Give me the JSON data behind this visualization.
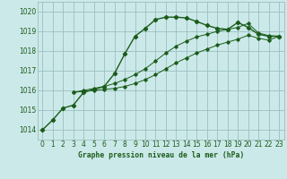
{
  "title": "Graphe pression niveau de la mer (hPa)",
  "bg_color": "#cce9e9",
  "grid_color": "#9bbfbf",
  "line_color": "#1a5c1a",
  "xlim": [
    -0.5,
    23.5
  ],
  "ylim": [
    1013.5,
    1020.5
  ],
  "xticks": [
    0,
    1,
    2,
    3,
    4,
    5,
    6,
    7,
    8,
    9,
    10,
    11,
    12,
    13,
    14,
    15,
    16,
    17,
    18,
    19,
    20,
    21,
    22,
    23
  ],
  "yticks": [
    1014,
    1015,
    1016,
    1017,
    1018,
    1019,
    1020
  ],
  "series1": {
    "x": [
      0,
      1,
      2,
      3,
      4,
      5,
      6,
      7,
      8,
      9,
      10,
      11,
      12,
      13,
      14,
      15,
      16,
      17,
      18,
      19,
      20,
      21,
      22,
      23
    ],
    "y": [
      1014.0,
      1014.5,
      1015.1,
      1015.25,
      1015.9,
      1016.05,
      1016.2,
      1016.85,
      1017.85,
      1018.75,
      1019.15,
      1019.6,
      1019.72,
      1019.72,
      1019.68,
      1019.5,
      1019.3,
      1019.15,
      1019.1,
      1019.45,
      1019.2,
      1018.85,
      1018.75,
      1018.75
    ]
  },
  "series2": {
    "x": [
      3,
      23
    ],
    "y": [
      1015.9,
      1018.75
    ]
  },
  "series3": {
    "x": [
      3,
      23
    ],
    "y": [
      1015.9,
      1018.75
    ]
  },
  "series2_full": {
    "x": [
      3,
      4,
      5,
      6,
      7,
      8,
      9,
      10,
      11,
      12,
      13,
      14,
      15,
      16,
      17,
      18,
      19,
      20,
      21,
      22,
      23
    ],
    "y": [
      1015.9,
      1015.95,
      1016.0,
      1016.05,
      1016.1,
      1016.2,
      1016.35,
      1016.55,
      1016.8,
      1017.1,
      1017.4,
      1017.65,
      1017.9,
      1018.1,
      1018.3,
      1018.45,
      1018.6,
      1018.8,
      1018.65,
      1018.55,
      1018.75
    ]
  },
  "series3_full": {
    "x": [
      3,
      4,
      5,
      6,
      7,
      8,
      9,
      10,
      11,
      12,
      13,
      14,
      15,
      16,
      17,
      18,
      19,
      20,
      21,
      22,
      23
    ],
    "y": [
      1015.9,
      1016.0,
      1016.1,
      1016.2,
      1016.35,
      1016.55,
      1016.8,
      1017.1,
      1017.5,
      1017.9,
      1018.25,
      1018.5,
      1018.72,
      1018.85,
      1019.0,
      1019.1,
      1019.2,
      1019.4,
      1018.92,
      1018.78,
      1018.75
    ]
  }
}
